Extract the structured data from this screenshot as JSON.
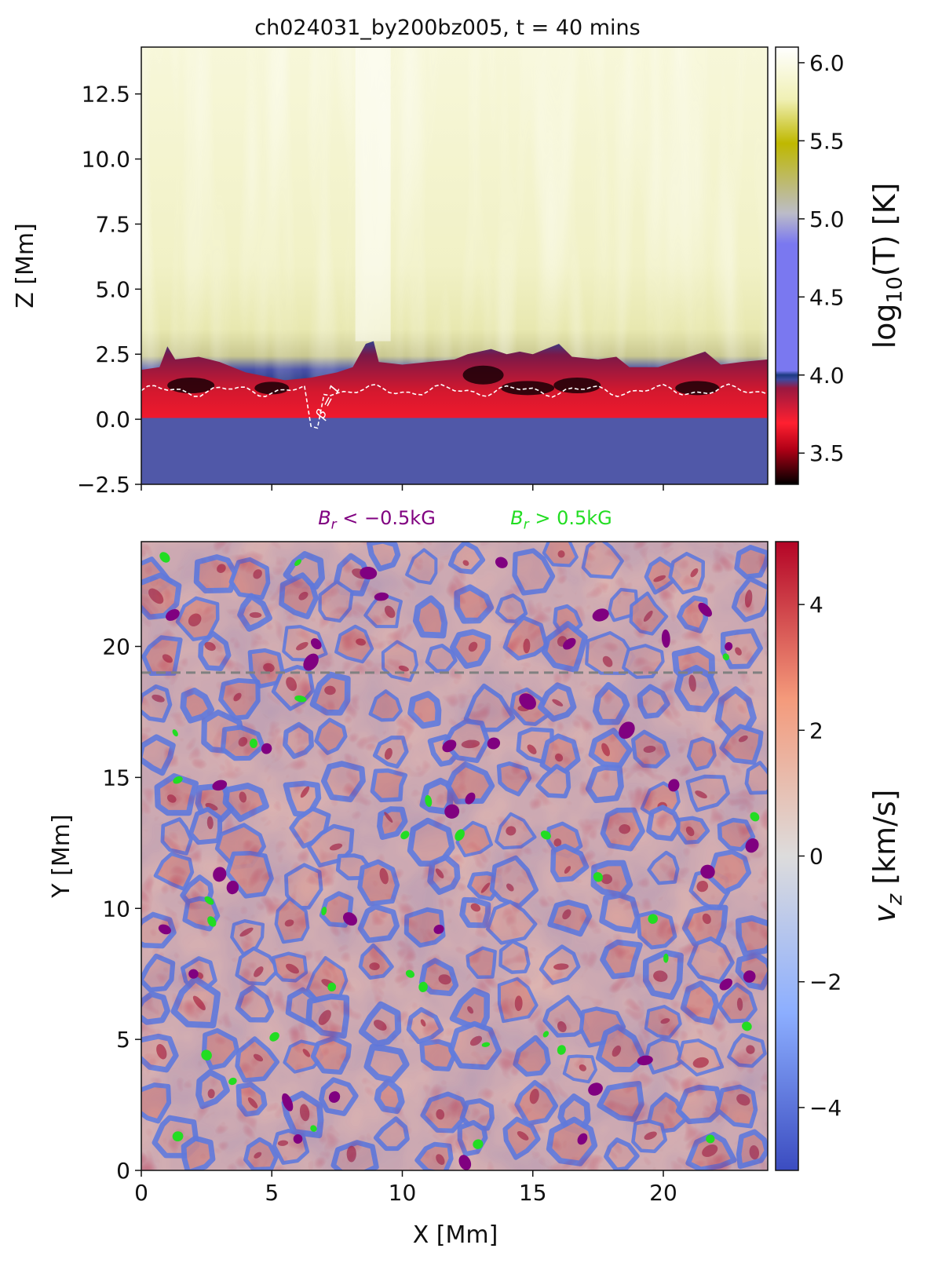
{
  "title_prefix": "ch024031_by200bz005, t = ",
  "title_time": "40 mins",
  "colors": {
    "temperature_cmap": [
      "#000000",
      "#b00016",
      "#ff2030",
      "#9a1840",
      "#3c4aa0",
      "#1c3a82",
      "#7a78f0",
      "#bcbcc8",
      "#bfb800",
      "#f0f0b4",
      "#ffffff"
    ],
    "velocity_cmap": [
      "#3b4cc0",
      "#8caeff",
      "#dddcdc",
      "#f49a7b",
      "#b40426"
    ],
    "negative_flux": "#800080",
    "positive_flux": "#22dd22",
    "dashed_line": "#808080"
  },
  "chart_data": [
    {
      "type": "heatmap",
      "quantity": "temperature",
      "ylabel": "Z [Mm]",
      "xlim": [
        0,
        24
      ],
      "ylim": [
        -2.5,
        14.3
      ],
      "yticks": [
        -2.5,
        0.0,
        2.5,
        5.0,
        7.5,
        10.0,
        12.5
      ],
      "ytick_labels": [
        "−2.5",
        "0.0",
        "2.5",
        "5.0",
        "7.5",
        "10.0",
        "12.5"
      ],
      "xticks": [
        0,
        5,
        10,
        15,
        20
      ],
      "colorbar": {
        "label_main": "log",
        "label_sub": "10",
        "label_tail": "(T) [K]",
        "range": [
          3.3,
          6.1
        ],
        "ticks": [
          3.5,
          4.0,
          4.5,
          5.0,
          5.5,
          6.0
        ],
        "tick_labels": [
          "3.5",
          "4.0",
          "4.5",
          "5.0",
          "5.5",
          "6.0"
        ]
      },
      "contour_label": "β = 1"
    },
    {
      "type": "heatmap",
      "quantity": "vertical velocity",
      "xlabel": "X [Mm]",
      "ylabel": "Y [Mm]",
      "xlim": [
        0,
        24
      ],
      "ylim": [
        0,
        24
      ],
      "xticks": [
        0,
        5,
        10,
        15,
        20
      ],
      "xtick_labels": [
        "0",
        "5",
        "10",
        "15",
        "20"
      ],
      "yticks": [
        0,
        5,
        10,
        15,
        20
      ],
      "ytick_labels": [
        "0",
        "5",
        "10",
        "15",
        "20"
      ],
      "colorbar": {
        "label_main": "v",
        "label_sub": "z",
        "label_tail": " [km/s]",
        "range": [
          -5,
          5
        ],
        "ticks": [
          -4,
          -2,
          0,
          2,
          4
        ],
        "tick_labels": [
          "−4",
          "−2",
          "0",
          "2",
          "4"
        ]
      },
      "dashed_line_y": 19,
      "legend": [
        {
          "label_main": "B",
          "label_sub": "r",
          "label_tail": " < −0.5kG",
          "color": "#800080"
        },
        {
          "label_main": "B",
          "label_sub": "r",
          "label_tail": " > 0.5kG",
          "color": "#22dd22"
        }
      ],
      "negative_flux_patches": [
        [
          1.2,
          21.2
        ],
        [
          6.5,
          19.4
        ],
        [
          6.7,
          20.1
        ],
        [
          8.7,
          22.8
        ],
        [
          14.8,
          17.9
        ],
        [
          13.5,
          16.3
        ],
        [
          12.4,
          0.3
        ],
        [
          16.9,
          1.2
        ],
        [
          17.4,
          3.1
        ],
        [
          19.3,
          4.2
        ],
        [
          22.4,
          7.1
        ],
        [
          23.3,
          7.4
        ],
        [
          23.4,
          12.4
        ],
        [
          21.7,
          11.4
        ],
        [
          20.4,
          14.7
        ],
        [
          18.6,
          16.8
        ],
        [
          17.6,
          21.2
        ],
        [
          20.1,
          20.3
        ],
        [
          12.6,
          14.2
        ],
        [
          11.9,
          13.7
        ],
        [
          3.0,
          11.3
        ],
        [
          3.5,
          10.8
        ],
        [
          8.0,
          9.6
        ],
        [
          11.4,
          9.2
        ],
        [
          7.4,
          2.8
        ],
        [
          6.0,
          1.2
        ],
        [
          3.0,
          14.7
        ],
        [
          4.8,
          16.1
        ],
        [
          21.6,
          21.4
        ],
        [
          22.5,
          20.0
        ],
        [
          16.4,
          20.1
        ],
        [
          13.8,
          23.2
        ],
        [
          9.2,
          21.9
        ],
        [
          11.8,
          16.2
        ],
        [
          5.6,
          2.6
        ],
        [
          2.0,
          7.5
        ],
        [
          0.9,
          9.2
        ]
      ],
      "positive_flux_patches": [
        [
          0.9,
          23.4
        ],
        [
          6.0,
          23.2
        ],
        [
          4.3,
          16.3
        ],
        [
          1.3,
          16.7
        ],
        [
          1.4,
          14.9
        ],
        [
          2.6,
          10.3
        ],
        [
          2.7,
          9.5
        ],
        [
          5.1,
          5.1
        ],
        [
          2.5,
          4.4
        ],
        [
          3.5,
          3.4
        ],
        [
          1.4,
          1.3
        ],
        [
          6.6,
          1.6
        ],
        [
          10.3,
          7.5
        ],
        [
          10.8,
          7.0
        ],
        [
          7.3,
          7.0
        ],
        [
          11.0,
          14.1
        ],
        [
          10.1,
          12.8
        ],
        [
          12.2,
          12.8
        ],
        [
          15.5,
          5.2
        ],
        [
          13.2,
          4.8
        ],
        [
          15.5,
          12.8
        ],
        [
          17.5,
          11.2
        ],
        [
          19.6,
          9.6
        ],
        [
          20.1,
          8.1
        ],
        [
          21.8,
          1.2
        ],
        [
          23.2,
          5.5
        ],
        [
          23.5,
          13.5
        ],
        [
          22.4,
          19.6
        ],
        [
          6.1,
          18.0
        ],
        [
          7.0,
          9.9
        ],
        [
          12.9,
          1.0
        ],
        [
          16.1,
          4.6
        ]
      ]
    }
  ]
}
